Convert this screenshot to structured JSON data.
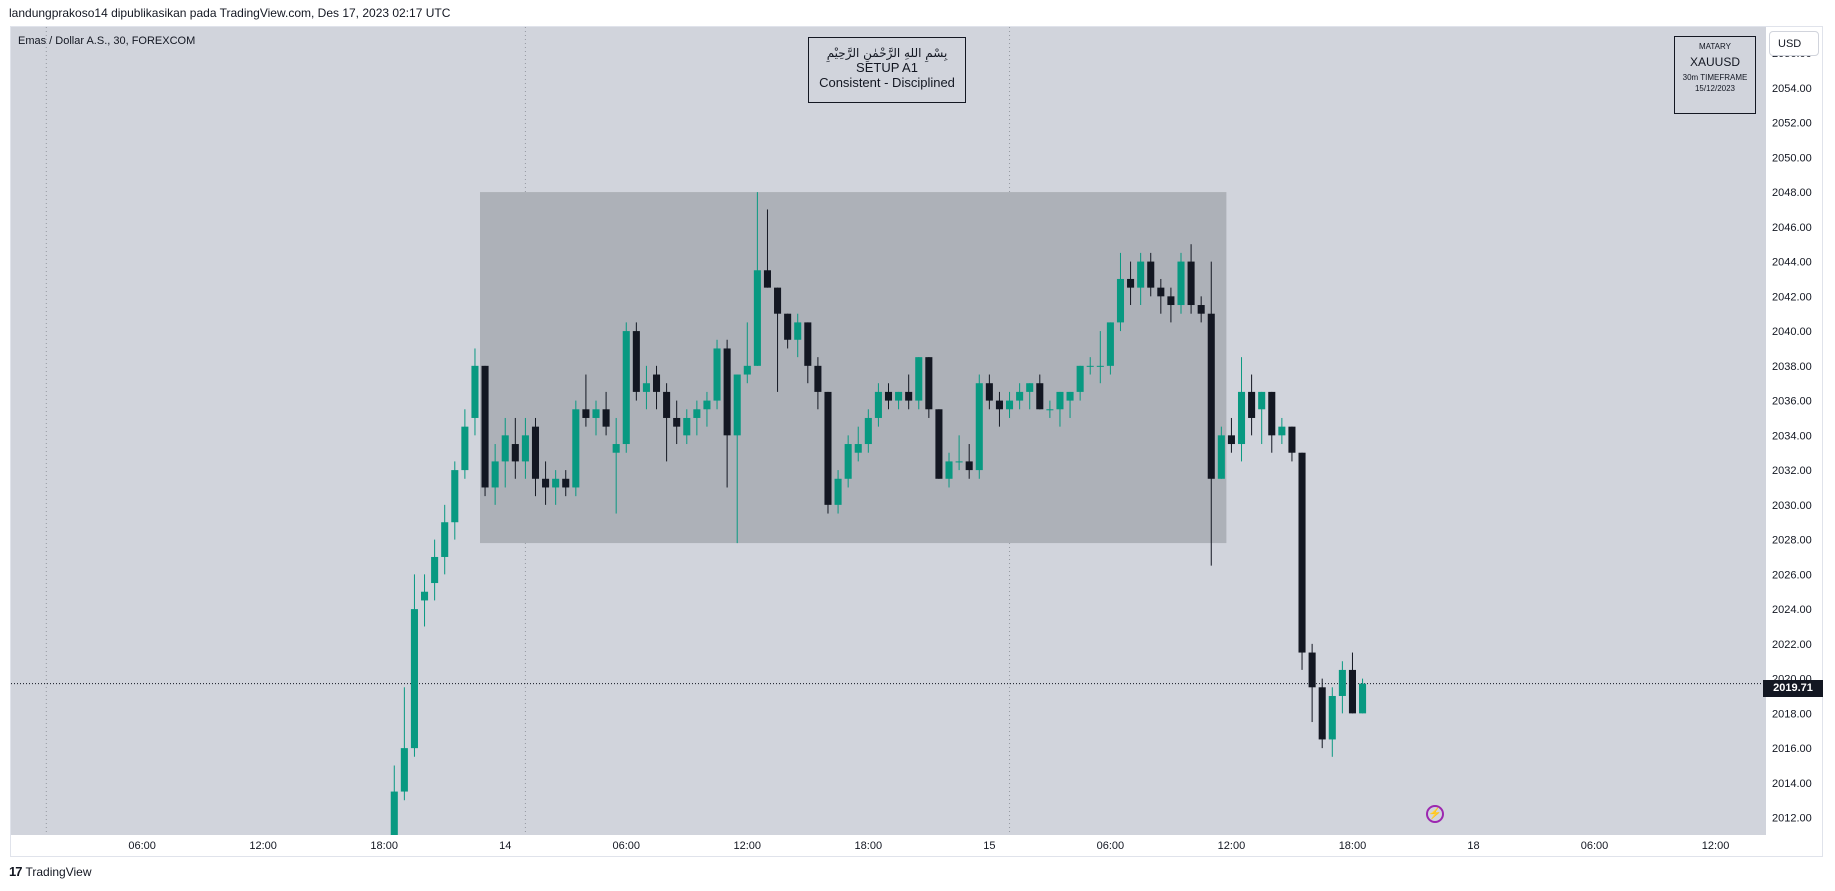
{
  "header": {
    "publish_info": "landungprakoso14 dipublikasikan pada TradingView.com, Des 17, 2023 02:17 UTC"
  },
  "chart": {
    "symbol_label": "Emas / Dollar A.S., 30, FOREXCOM",
    "currency": "USD",
    "current_price_label": "2019.71"
  },
  "title_box": {
    "arabic": "بِسْمِ اللهِ الرَّحْمٰنِ الرَّحِيْمِ",
    "line1": "SETUP A1",
    "line2": "Consistent - Disciplined"
  },
  "info_box": {
    "line1": "MATARY",
    "line2": "XAUUSD",
    "line3": "30m TIMEFRAME",
    "line4": "15/12/2023"
  },
  "footer": {
    "brand": "TradingView",
    "logo_glyph": "17"
  },
  "colors": {
    "background": "#d1d4dc",
    "bull": "#089981",
    "bear": "#131722",
    "range_box": "#adb1b8",
    "grid_dotted": "#9598a1"
  },
  "chart_data": {
    "type": "candlestick",
    "symbol": "XAUUSD",
    "timeframe": "30",
    "y_axis": {
      "min": 2011,
      "max": 2057.5,
      "ticks": [
        2012,
        2014,
        2016,
        2018,
        2020,
        2022,
        2024,
        2026,
        2028,
        2030,
        2032,
        2034,
        2036,
        2038,
        2040,
        2042,
        2044,
        2046,
        2048,
        2050,
        2052,
        2054,
        2056
      ],
      "tick_labels": [
        "2012.00",
        "2014.00",
        "2016.00",
        "2018.00",
        "2020.00",
        "2022.00",
        "2024.00",
        "2026.00",
        "2028.00",
        "2030.00",
        "2032.00",
        "2034.00",
        "2036.00",
        "2038.00",
        "2040.00",
        "2042.00",
        "2044.00",
        "2046.00",
        "2048.00",
        "2050.00",
        "2052.00",
        "2054.00",
        "2056.00"
      ]
    },
    "x_axis": {
      "start_slot": -1,
      "end_slot": 173,
      "ticks": [
        {
          "slot": 12,
          "label": "06:00"
        },
        {
          "slot": 24,
          "label": "12:00"
        },
        {
          "slot": 36,
          "label": "18:00"
        },
        {
          "slot": 48,
          "label": "14"
        },
        {
          "slot": 60,
          "label": "06:00"
        },
        {
          "slot": 72,
          "label": "12:00"
        },
        {
          "slot": 84,
          "label": "18:00"
        },
        {
          "slot": 96,
          "label": "15"
        },
        {
          "slot": 108,
          "label": "06:00"
        },
        {
          "slot": 120,
          "label": "12:00"
        },
        {
          "slot": 132,
          "label": "18:00"
        },
        {
          "slot": 144,
          "label": "18"
        },
        {
          "slot": 156,
          "label": "06:00"
        },
        {
          "slot": 168,
          "label": "12:00"
        }
      ],
      "session_lines": [
        2.5,
        50,
        98
      ]
    },
    "range_box": {
      "start_slot": 45.5,
      "end_slot": 119.5,
      "low": 2027.8,
      "high": 2048.0
    },
    "current_price": 2019.71,
    "candles": [
      {
        "slot": 37,
        "o": 2011.0,
        "h": 2015.0,
        "l": 2011.0,
        "c": 2013.5
      },
      {
        "slot": 38,
        "o": 2013.5,
        "h": 2019.5,
        "l": 2013.0,
        "c": 2016.0
      },
      {
        "slot": 39,
        "o": 2016.0,
        "h": 2026.0,
        "l": 2015.5,
        "c": 2024.0
      },
      {
        "slot": 40,
        "o": 2024.5,
        "h": 2026.0,
        "l": 2023.0,
        "c": 2025.0
      },
      {
        "slot": 41,
        "o": 2025.5,
        "h": 2028.0,
        "l": 2024.5,
        "c": 2027.0
      },
      {
        "slot": 42,
        "o": 2027.0,
        "h": 2030.0,
        "l": 2026.0,
        "c": 2029.0
      },
      {
        "slot": 43,
        "o": 2029.0,
        "h": 2032.5,
        "l": 2028.0,
        "c": 2032.0
      },
      {
        "slot": 44,
        "o": 2032.0,
        "h": 2035.5,
        "l": 2031.5,
        "c": 2034.5
      },
      {
        "slot": 45,
        "o": 2035.0,
        "h": 2039.0,
        "l": 2034.0,
        "c": 2038.0
      },
      {
        "slot": 46,
        "o": 2038.0,
        "h": 2038.0,
        "l": 2030.5,
        "c": 2031.0
      },
      {
        "slot": 47,
        "o": 2031.0,
        "h": 2033.5,
        "l": 2030.0,
        "c": 2032.5
      },
      {
        "slot": 48,
        "o": 2032.5,
        "h": 2035.0,
        "l": 2031.0,
        "c": 2034.0
      },
      {
        "slot": 49,
        "o": 2033.5,
        "h": 2035.0,
        "l": 2031.5,
        "c": 2032.5
      },
      {
        "slot": 50,
        "o": 2032.5,
        "h": 2035.0,
        "l": 2031.5,
        "c": 2034.0
      },
      {
        "slot": 51,
        "o": 2034.5,
        "h": 2035.0,
        "l": 2030.5,
        "c": 2031.5
      },
      {
        "slot": 52,
        "o": 2031.5,
        "h": 2032.5,
        "l": 2030.0,
        "c": 2031.0
      },
      {
        "slot": 53,
        "o": 2031.0,
        "h": 2032.0,
        "l": 2030.0,
        "c": 2031.5
      },
      {
        "slot": 54,
        "o": 2031.5,
        "h": 2032.0,
        "l": 2030.5,
        "c": 2031.0
      },
      {
        "slot": 55,
        "o": 2031.0,
        "h": 2036.0,
        "l": 2030.5,
        "c": 2035.5
      },
      {
        "slot": 56,
        "o": 2035.5,
        "h": 2037.5,
        "l": 2034.5,
        "c": 2035.0
      },
      {
        "slot": 57,
        "o": 2035.0,
        "h": 2036.0,
        "l": 2034.0,
        "c": 2035.5
      },
      {
        "slot": 58,
        "o": 2035.5,
        "h": 2036.5,
        "l": 2034.0,
        "c": 2034.5
      },
      {
        "slot": 59,
        "o": 2033.0,
        "h": 2035.0,
        "l": 2029.5,
        "c": 2033.5
      },
      {
        "slot": 60,
        "o": 2033.5,
        "h": 2040.5,
        "l": 2033.0,
        "c": 2040.0
      },
      {
        "slot": 61,
        "o": 2040.0,
        "h": 2040.5,
        "l": 2036.0,
        "c": 2036.5
      },
      {
        "slot": 62,
        "o": 2036.5,
        "h": 2038.0,
        "l": 2035.5,
        "c": 2037.0
      },
      {
        "slot": 63,
        "o": 2037.5,
        "h": 2038.0,
        "l": 2035.5,
        "c": 2036.5
      },
      {
        "slot": 64,
        "o": 2036.5,
        "h": 2037.0,
        "l": 2032.5,
        "c": 2035.0
      },
      {
        "slot": 65,
        "o": 2035.0,
        "h": 2036.0,
        "l": 2033.5,
        "c": 2034.5
      },
      {
        "slot": 66,
        "o": 2034.0,
        "h": 2035.5,
        "l": 2033.5,
        "c": 2035.0
      },
      {
        "slot": 67,
        "o": 2035.0,
        "h": 2036.0,
        "l": 2034.0,
        "c": 2035.5
      },
      {
        "slot": 68,
        "o": 2035.5,
        "h": 2036.5,
        "l": 2034.5,
        "c": 2036.0
      },
      {
        "slot": 69,
        "o": 2036.0,
        "h": 2039.5,
        "l": 2035.5,
        "c": 2039.0
      },
      {
        "slot": 70,
        "o": 2039.0,
        "h": 2039.5,
        "l": 2031.0,
        "c": 2034.0
      },
      {
        "slot": 71,
        "o": 2034.0,
        "h": 2037.5,
        "l": 2027.8,
        "c": 2037.5
      },
      {
        "slot": 72,
        "o": 2037.5,
        "h": 2040.5,
        "l": 2037.0,
        "c": 2038.0
      },
      {
        "slot": 73,
        "o": 2038.0,
        "h": 2048.0,
        "l": 2038.0,
        "c": 2043.5
      },
      {
        "slot": 74,
        "o": 2043.5,
        "h": 2047.0,
        "l": 2042.5,
        "c": 2042.5
      },
      {
        "slot": 75,
        "o": 2042.5,
        "h": 2042.5,
        "l": 2036.5,
        "c": 2041.0
      },
      {
        "slot": 76,
        "o": 2041.0,
        "h": 2041.0,
        "l": 2039.0,
        "c": 2039.5
      },
      {
        "slot": 77,
        "o": 2039.5,
        "h": 2041.0,
        "l": 2038.5,
        "c": 2040.5
      },
      {
        "slot": 78,
        "o": 2040.5,
        "h": 2040.5,
        "l": 2037.0,
        "c": 2038.0
      },
      {
        "slot": 79,
        "o": 2038.0,
        "h": 2038.5,
        "l": 2035.5,
        "c": 2036.5
      },
      {
        "slot": 80,
        "o": 2036.5,
        "h": 2036.5,
        "l": 2029.5,
        "c": 2030.0
      },
      {
        "slot": 81,
        "o": 2030.0,
        "h": 2032.0,
        "l": 2029.5,
        "c": 2031.5
      },
      {
        "slot": 82,
        "o": 2031.5,
        "h": 2034.0,
        "l": 2031.0,
        "c": 2033.5
      },
      {
        "slot": 83,
        "o": 2033.0,
        "h": 2034.5,
        "l": 2032.5,
        "c": 2033.5
      },
      {
        "slot": 84,
        "o": 2033.5,
        "h": 2035.5,
        "l": 2033.0,
        "c": 2035.0
      },
      {
        "slot": 85,
        "o": 2035.0,
        "h": 2037.0,
        "l": 2034.5,
        "c": 2036.5
      },
      {
        "slot": 86,
        "o": 2036.5,
        "h": 2037.0,
        "l": 2035.5,
        "c": 2036.0
      },
      {
        "slot": 87,
        "o": 2036.0,
        "h": 2036.5,
        "l": 2035.5,
        "c": 2036.5
      },
      {
        "slot": 88,
        "o": 2036.5,
        "h": 2037.5,
        "l": 2035.5,
        "c": 2036.0
      },
      {
        "slot": 89,
        "o": 2036.0,
        "h": 2038.5,
        "l": 2035.5,
        "c": 2038.5
      },
      {
        "slot": 90,
        "o": 2038.5,
        "h": 2038.5,
        "l": 2035.0,
        "c": 2035.5
      },
      {
        "slot": 91,
        "o": 2035.5,
        "h": 2035.5,
        "l": 2031.5,
        "c": 2031.5
      },
      {
        "slot": 92,
        "o": 2031.5,
        "h": 2033.0,
        "l": 2031.0,
        "c": 2032.5
      },
      {
        "slot": 93,
        "o": 2032.5,
        "h": 2034.0,
        "l": 2032.0,
        "c": 2032.5
      },
      {
        "slot": 94,
        "o": 2032.5,
        "h": 2033.5,
        "l": 2031.5,
        "c": 2032.0
      },
      {
        "slot": 95,
        "o": 2032.0,
        "h": 2037.5,
        "l": 2031.5,
        "c": 2037.0
      },
      {
        "slot": 96,
        "o": 2037.0,
        "h": 2037.5,
        "l": 2035.5,
        "c": 2036.0
      },
      {
        "slot": 97,
        "o": 2036.0,
        "h": 2036.5,
        "l": 2034.5,
        "c": 2035.5
      },
      {
        "slot": 98,
        "o": 2035.5,
        "h": 2036.5,
        "l": 2035.0,
        "c": 2036.0
      },
      {
        "slot": 99,
        "o": 2036.0,
        "h": 2037.0,
        "l": 2035.5,
        "c": 2036.5
      },
      {
        "slot": 100,
        "o": 2036.5,
        "h": 2037.0,
        "l": 2035.5,
        "c": 2037.0
      },
      {
        "slot": 101,
        "o": 2037.0,
        "h": 2037.5,
        "l": 2035.5,
        "c": 2035.5
      },
      {
        "slot": 102,
        "o": 2035.5,
        "h": 2036.0,
        "l": 2035.0,
        "c": 2035.5
      },
      {
        "slot": 103,
        "o": 2035.5,
        "h": 2036.5,
        "l": 2034.5,
        "c": 2036.5
      },
      {
        "slot": 104,
        "o": 2036.0,
        "h": 2036.5,
        "l": 2035.0,
        "c": 2036.5
      },
      {
        "slot": 105,
        "o": 2036.5,
        "h": 2038.0,
        "l": 2036.0,
        "c": 2038.0
      },
      {
        "slot": 106,
        "o": 2038.0,
        "h": 2038.5,
        "l": 2037.5,
        "c": 2038.0
      },
      {
        "slot": 107,
        "o": 2038.0,
        "h": 2040.0,
        "l": 2037.0,
        "c": 2038.0
      },
      {
        "slot": 108,
        "o": 2038.0,
        "h": 2040.5,
        "l": 2037.5,
        "c": 2040.5
      },
      {
        "slot": 109,
        "o": 2040.5,
        "h": 2044.5,
        "l": 2040.0,
        "c": 2043.0
      },
      {
        "slot": 110,
        "o": 2043.0,
        "h": 2044.0,
        "l": 2041.5,
        "c": 2042.5
      },
      {
        "slot": 111,
        "o": 2042.5,
        "h": 2044.5,
        "l": 2041.5,
        "c": 2044.0
      },
      {
        "slot": 112,
        "o": 2044.0,
        "h": 2044.5,
        "l": 2042.0,
        "c": 2042.5
      },
      {
        "slot": 113,
        "o": 2042.5,
        "h": 2043.0,
        "l": 2041.0,
        "c": 2042.0
      },
      {
        "slot": 114,
        "o": 2042.0,
        "h": 2042.5,
        "l": 2040.5,
        "c": 2041.5
      },
      {
        "slot": 115,
        "o": 2041.5,
        "h": 2044.5,
        "l": 2041.0,
        "c": 2044.0
      },
      {
        "slot": 116,
        "o": 2044.0,
        "h": 2045.0,
        "l": 2041.0,
        "c": 2041.5
      },
      {
        "slot": 117,
        "o": 2041.5,
        "h": 2042.0,
        "l": 2040.5,
        "c": 2041.0
      },
      {
        "slot": 118,
        "o": 2041.0,
        "h": 2044.0,
        "l": 2026.5,
        "c": 2031.5
      },
      {
        "slot": 119,
        "o": 2031.5,
        "h": 2034.5,
        "l": 2031.5,
        "c": 2034.0
      },
      {
        "slot": 120,
        "o": 2034.0,
        "h": 2035.0,
        "l": 2033.0,
        "c": 2033.5
      },
      {
        "slot": 121,
        "o": 2033.5,
        "h": 2038.5,
        "l": 2032.5,
        "c": 2036.5
      },
      {
        "slot": 122,
        "o": 2036.5,
        "h": 2037.5,
        "l": 2034.0,
        "c": 2035.0
      },
      {
        "slot": 123,
        "o": 2035.5,
        "h": 2036.5,
        "l": 2033.5,
        "c": 2036.5
      },
      {
        "slot": 124,
        "o": 2036.5,
        "h": 2036.5,
        "l": 2033.0,
        "c": 2034.0
      },
      {
        "slot": 125,
        "o": 2034.0,
        "h": 2035.0,
        "l": 2033.5,
        "c": 2034.5
      },
      {
        "slot": 126,
        "o": 2034.5,
        "h": 2034.5,
        "l": 2032.5,
        "c": 2033.0
      },
      {
        "slot": 127,
        "o": 2033.0,
        "h": 2033.0,
        "l": 2020.5,
        "c": 2021.5
      },
      {
        "slot": 128,
        "o": 2021.5,
        "h": 2022.0,
        "l": 2017.5,
        "c": 2019.5
      },
      {
        "slot": 129,
        "o": 2019.5,
        "h": 2020.0,
        "l": 2016.0,
        "c": 2016.5
      },
      {
        "slot": 130,
        "o": 2016.5,
        "h": 2019.5,
        "l": 2015.5,
        "c": 2019.0
      },
      {
        "slot": 131,
        "o": 2019.0,
        "h": 2021.0,
        "l": 2018.0,
        "c": 2020.5
      },
      {
        "slot": 132,
        "o": 2020.5,
        "h": 2021.5,
        "l": 2018.0,
        "c": 2018.0
      },
      {
        "slot": 133,
        "o": 2018.0,
        "h": 2020.0,
        "l": 2018.0,
        "c": 2019.71
      }
    ]
  }
}
